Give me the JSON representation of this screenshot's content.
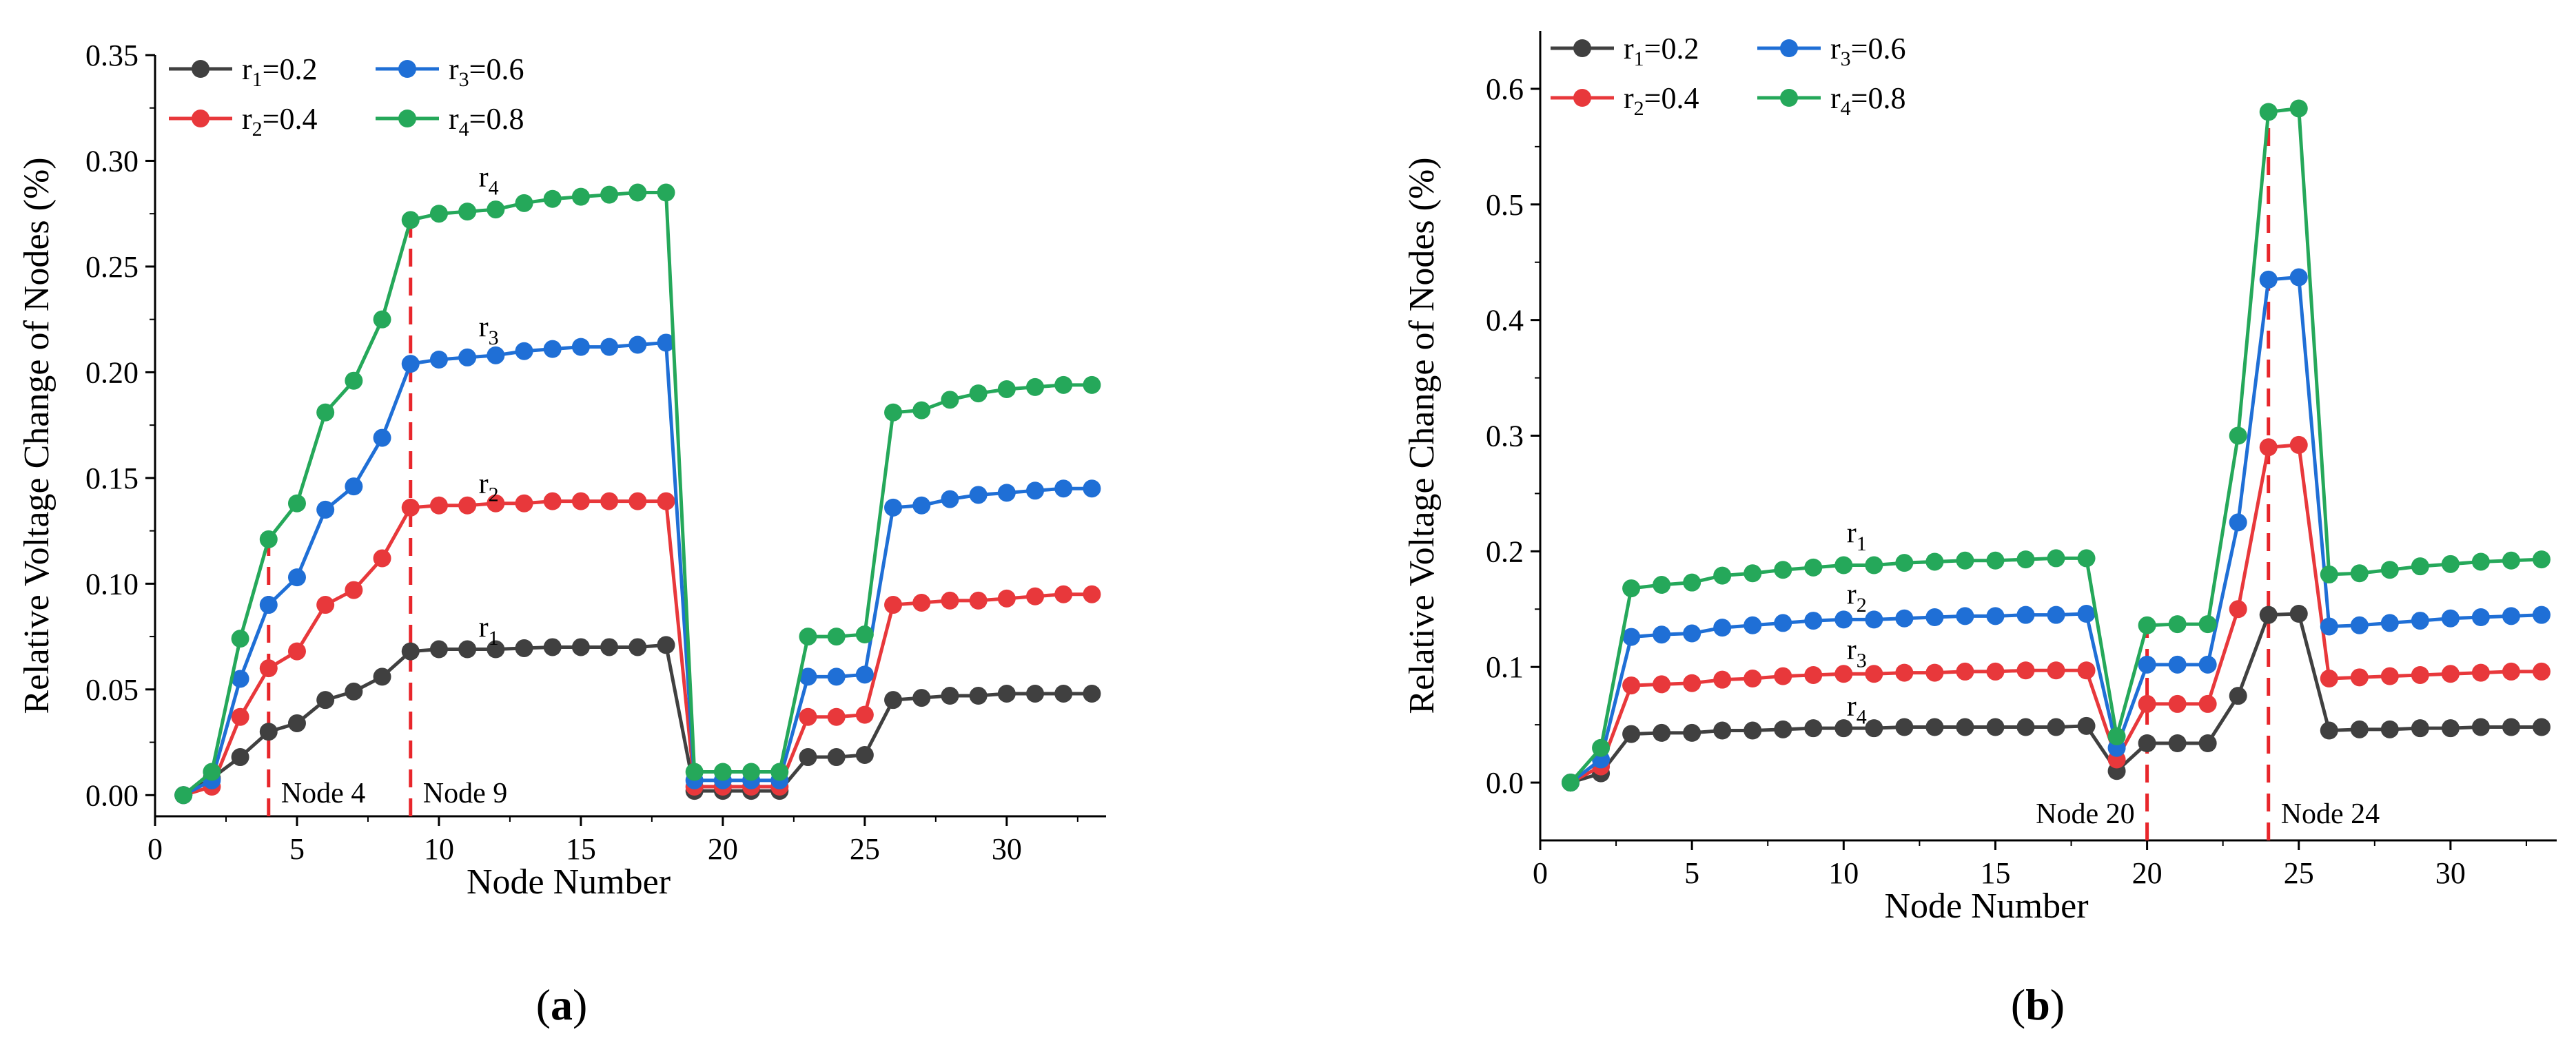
{
  "chart_data": [
    {
      "panel_label": "(a)",
      "panel_label_parts": [
        "(",
        "a",
        ")"
      ],
      "type": "line",
      "xlabel": "Node Number",
      "ylabel": "Relative Voltage Change of Nodes (%)",
      "xlim": [
        0,
        33.5
      ],
      "ylim": [
        -0.01,
        0.35
      ],
      "xticks": [
        0,
        5,
        10,
        15,
        20,
        25,
        30
      ],
      "xtick_labels": [
        "0",
        "5",
        "10",
        "15",
        "20",
        "25",
        "30"
      ],
      "yticks": [
        0,
        0.05,
        0.1,
        0.15,
        0.2,
        0.25,
        0.3,
        0.35
      ],
      "ytick_labels": [
        "0.00",
        "0.05",
        "0.10",
        "0.15",
        "0.20",
        "0.25",
        "0.30",
        "0.35"
      ],
      "legend": [
        {
          "main": "r",
          "sub": "1",
          "rest": "=0.2"
        },
        {
          "main": "r",
          "sub": "3",
          "rest": "=0.6"
        },
        {
          "main": "r",
          "sub": "2",
          "rest": "=0.4"
        },
        {
          "main": "r",
          "sub": "4",
          "rest": "=0.8"
        }
      ],
      "x": [
        1,
        2,
        3,
        4,
        5,
        6,
        7,
        8,
        9,
        10,
        11,
        12,
        13,
        14,
        15,
        16,
        17,
        18,
        19,
        20,
        21,
        22,
        23,
        24,
        25,
        26,
        27,
        28,
        29,
        30,
        31,
        32,
        33
      ],
      "series": [
        {
          "name": "r1=0.2",
          "color": "#404040",
          "values": [
            0,
            0.008,
            0.018,
            0.03,
            0.034,
            0.045,
            0.049,
            0.056,
            0.068,
            0.069,
            0.069,
            0.069,
            0.0695,
            0.07,
            0.07,
            0.07,
            0.07,
            0.071,
            0.002,
            0.002,
            0.002,
            0.002,
            0.018,
            0.018,
            0.019,
            0.045,
            0.046,
            0.047,
            0.047,
            0.048,
            0.048,
            0.048,
            0.048
          ]
        },
        {
          "name": "r2=0.4",
          "color": "#e8383b",
          "values": [
            0,
            0.004,
            0.037,
            0.06,
            0.068,
            0.09,
            0.097,
            0.112,
            0.136,
            0.137,
            0.137,
            0.138,
            0.138,
            0.139,
            0.139,
            0.139,
            0.139,
            0.139,
            0.004,
            0.004,
            0.004,
            0.004,
            0.037,
            0.037,
            0.038,
            0.09,
            0.091,
            0.092,
            0.092,
            0.093,
            0.094,
            0.095,
            0.095
          ]
        },
        {
          "name": "r3=0.6",
          "color": "#1f6fd6",
          "values": [
            0,
            0.007,
            0.055,
            0.09,
            0.103,
            0.135,
            0.146,
            0.169,
            0.204,
            0.206,
            0.207,
            0.208,
            0.21,
            0.211,
            0.212,
            0.212,
            0.213,
            0.214,
            0.007,
            0.007,
            0.007,
            0.007,
            0.056,
            0.056,
            0.057,
            0.136,
            0.137,
            0.14,
            0.142,
            0.143,
            0.144,
            0.145,
            0.145
          ]
        },
        {
          "name": "r4=0.8",
          "color": "#25a85a",
          "values": [
            0,
            0.011,
            0.074,
            0.121,
            0.138,
            0.181,
            0.196,
            0.225,
            0.272,
            0.275,
            0.276,
            0.277,
            0.28,
            0.282,
            0.283,
            0.284,
            0.285,
            0.285,
            0.011,
            0.011,
            0.011,
            0.011,
            0.075,
            0.075,
            0.076,
            0.181,
            0.182,
            0.187,
            0.19,
            0.192,
            0.193,
            0.194,
            0.194
          ]
        }
      ],
      "reference_lines": [
        {
          "x": 4,
          "y_top": 0.121,
          "label": "Node 4"
        },
        {
          "x": 9,
          "y_top": 0.272,
          "label": "Node 9"
        }
      ],
      "annotations": [
        {
          "text": "r",
          "sub": "4",
          "x": 11.4,
          "y": 0.288
        },
        {
          "text": "r",
          "sub": "3",
          "x": 11.4,
          "y": 0.217
        },
        {
          "text": "r",
          "sub": "2",
          "x": 11.4,
          "y": 0.143
        },
        {
          "text": "r",
          "sub": "1",
          "x": 11.4,
          "y": 0.075
        }
      ]
    },
    {
      "panel_label": "(b)",
      "panel_label_parts": [
        "(",
        "b",
        ")"
      ],
      "type": "line",
      "xlabel": "Node Number",
      "ylabel": "Relative Voltage Change of Nodes (%)",
      "xlim": [
        0,
        33.5
      ],
      "ylim": [
        -0.05,
        0.65
      ],
      "xticks": [
        0,
        5,
        10,
        15,
        20,
        25,
        30
      ],
      "xtick_labels": [
        "0",
        "5",
        "10",
        "15",
        "20",
        "25",
        "30"
      ],
      "yticks": [
        0,
        0.1,
        0.2,
        0.3,
        0.4,
        0.5,
        0.6
      ],
      "ytick_labels": [
        "0.0",
        "0.1",
        "0.2",
        "0.3",
        "0.4",
        "0.5",
        "0.6"
      ],
      "legend": [
        {
          "main": "r",
          "sub": "1",
          "rest": "=0.2"
        },
        {
          "main": "r",
          "sub": "3",
          "rest": "=0.6"
        },
        {
          "main": "r",
          "sub": "2",
          "rest": "=0.4"
        },
        {
          "main": "r",
          "sub": "4",
          "rest": "=0.8"
        }
      ],
      "x": [
        1,
        2,
        3,
        4,
        5,
        6,
        7,
        8,
        9,
        10,
        11,
        12,
        13,
        14,
        15,
        16,
        17,
        18,
        19,
        20,
        21,
        22,
        23,
        24,
        25,
        26,
        27,
        28,
        29,
        30,
        31,
        32,
        33
      ],
      "series": [
        {
          "name": "r1=0.2",
          "color": "#404040",
          "values": [
            0,
            0.008,
            0.042,
            0.043,
            0.043,
            0.045,
            0.045,
            0.046,
            0.047,
            0.047,
            0.047,
            0.048,
            0.048,
            0.048,
            0.048,
            0.048,
            0.048,
            0.049,
            0.01,
            0.034,
            0.034,
            0.034,
            0.075,
            0.145,
            0.146,
            0.045,
            0.046,
            0.046,
            0.047,
            0.047,
            0.048,
            0.048,
            0.048
          ]
        },
        {
          "name": "r2=0.4",
          "color": "#e8383b",
          "values": [
            0,
            0.014,
            0.084,
            0.085,
            0.086,
            0.089,
            0.09,
            0.092,
            0.093,
            0.094,
            0.094,
            0.095,
            0.095,
            0.096,
            0.096,
            0.097,
            0.097,
            0.097,
            0.02,
            0.068,
            0.068,
            0.068,
            0.15,
            0.29,
            0.292,
            0.09,
            0.091,
            0.092,
            0.093,
            0.094,
            0.095,
            0.096,
            0.096
          ]
        },
        {
          "name": "r3=0.6",
          "color": "#1f6fd6",
          "values": [
            0,
            0.02,
            0.126,
            0.128,
            0.129,
            0.134,
            0.136,
            0.138,
            0.14,
            0.141,
            0.141,
            0.142,
            0.143,
            0.144,
            0.144,
            0.145,
            0.145,
            0.146,
            0.03,
            0.102,
            0.102,
            0.102,
            0.225,
            0.435,
            0.437,
            0.135,
            0.136,
            0.138,
            0.14,
            0.142,
            0.143,
            0.144,
            0.145
          ]
        },
        {
          "name": "r4=0.8",
          "color": "#25a85a",
          "values": [
            0,
            0.03,
            0.168,
            0.171,
            0.173,
            0.179,
            0.181,
            0.184,
            0.186,
            0.188,
            0.188,
            0.19,
            0.191,
            0.192,
            0.192,
            0.193,
            0.194,
            0.194,
            0.04,
            0.136,
            0.137,
            0.137,
            0.3,
            0.58,
            0.583,
            0.18,
            0.181,
            0.184,
            0.187,
            0.189,
            0.191,
            0.192,
            0.193
          ]
        }
      ],
      "reference_lines": [
        {
          "x": 20,
          "y_top": 0.136,
          "label": "Node 20"
        },
        {
          "x": 24,
          "y_top": 0.58,
          "label": "Node 24"
        }
      ],
      "annotations": [
        {
          "text": "r",
          "sub": "1",
          "x": 10.1,
          "y": 0.208
        },
        {
          "text": "r",
          "sub": "2",
          "x": 10.1,
          "y": 0.155
        },
        {
          "text": "r",
          "sub": "3",
          "x": 10.1,
          "y": 0.107
        },
        {
          "text": "r",
          "sub": "4",
          "x": 10.1,
          "y": 0.058
        }
      ]
    }
  ]
}
